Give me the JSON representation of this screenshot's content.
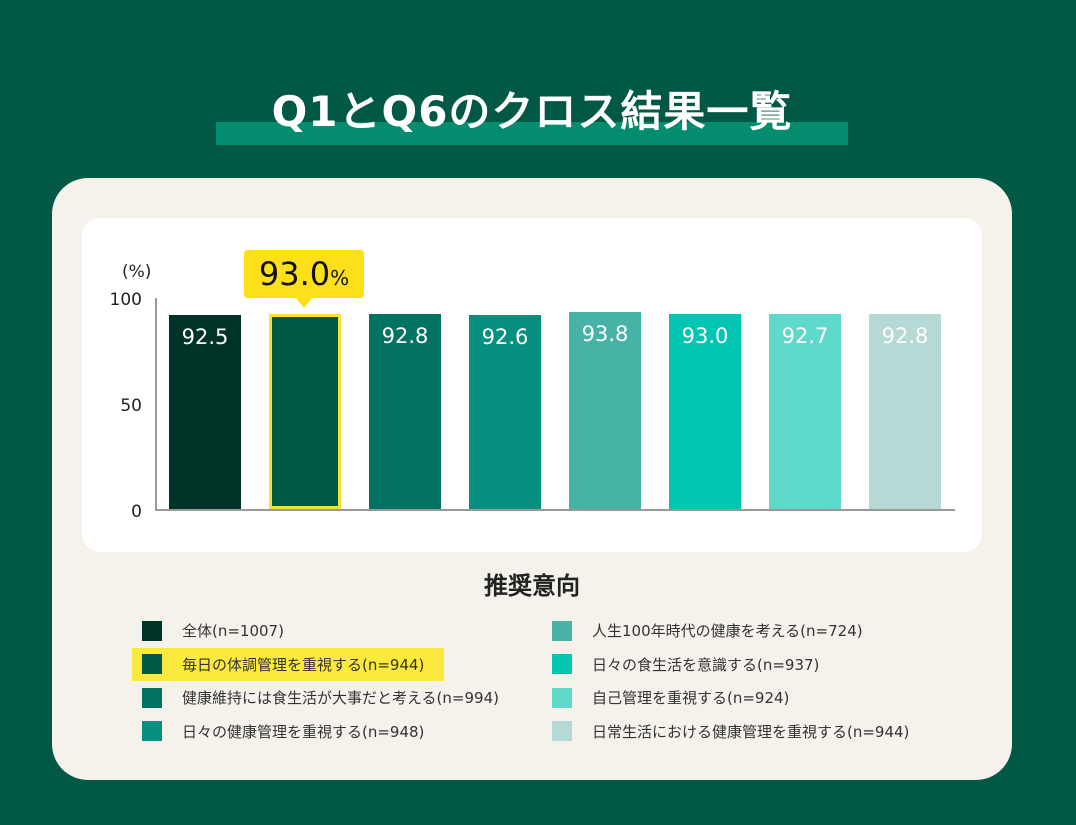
{
  "header": {
    "title": "Q1とQ6のクロス結果一覧"
  },
  "chart": {
    "unit_label": "(%)",
    "y_ticks": [
      "100",
      "50",
      "0"
    ],
    "callout": {
      "value": "93.0",
      "unit": "%"
    },
    "legend_title": "推奨意向"
  },
  "chart_data": {
    "type": "bar",
    "title": "Q1とQ6のクロス結果一覧",
    "xlabel": "推奨意向",
    "ylabel": "(%)",
    "ylim": [
      0,
      100
    ],
    "y_ticks": [
      0,
      50,
      100
    ],
    "grid": false,
    "legend_position": "bottom",
    "highlighted_index": 1,
    "highlight_annotation": "93.0%",
    "categories": [
      "全体(n=1007)",
      "毎日の体調管理を重視する(n=944)",
      "健康維持には食生活が大事だと考える(n=994)",
      "日々の健康管理を重視する(n=948)",
      "人生100年時代の健康を考える(n=724)",
      "日々の食生活を意識する(n=937)",
      "自己管理を重視する(n=924)",
      "日常生活における健康管理を重視する(n=944)"
    ],
    "values": [
      92.5,
      93.0,
      92.8,
      92.6,
      93.8,
      93.0,
      92.7,
      92.8
    ],
    "labels": [
      "92.5",
      "",
      "92.8",
      "92.6",
      "93.8",
      "93.0",
      "92.7",
      "92.8"
    ],
    "colors": [
      "#003328",
      "#015844",
      "#027362",
      "#078f80",
      "#47b3a7",
      "#02c6b2",
      "#5ed9cb",
      "#b5dad6"
    ]
  }
}
